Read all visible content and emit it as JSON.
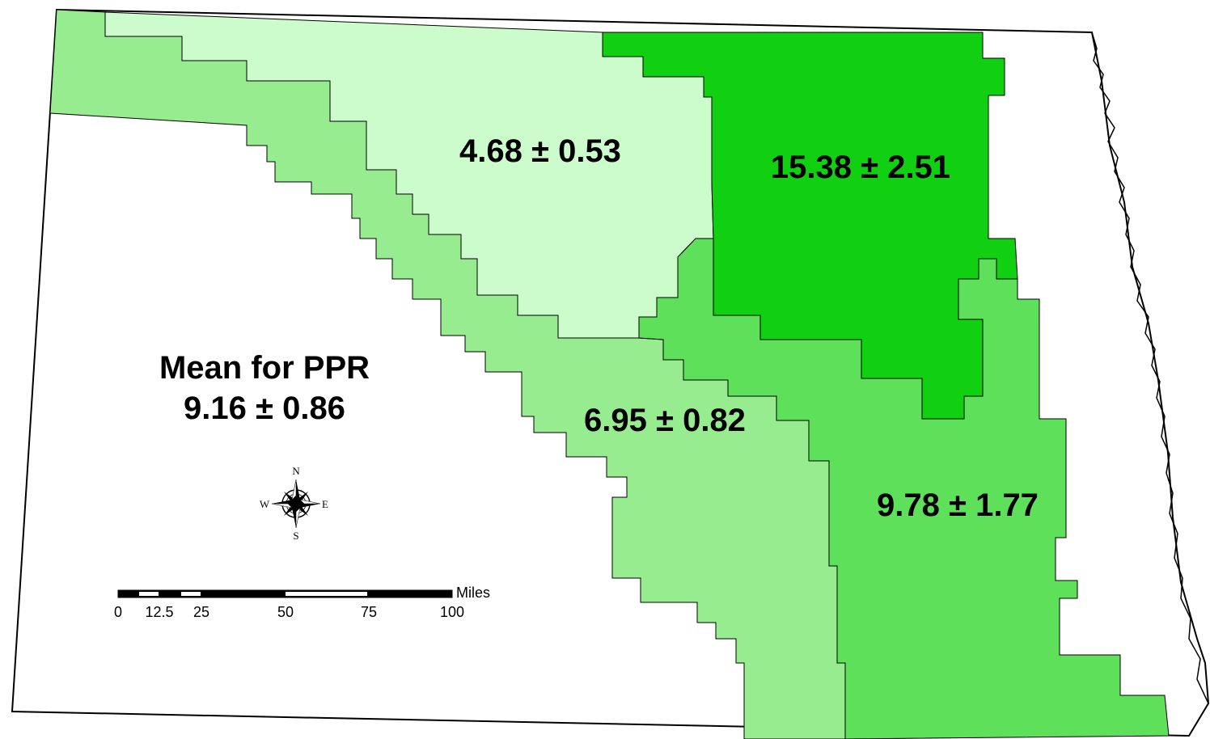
{
  "map": {
    "colors": {
      "background": "#ffffff",
      "outline": "#000000",
      "region_lightest": "#ccfccc",
      "region_light": "#96ec8e",
      "region_medium": "#5ee05a",
      "region_dark": "#11d011"
    },
    "regions": [
      {
        "id": "northwest-north-central",
        "label": "4.68 ± 0.53",
        "value": 4.68,
        "error": 0.53,
        "color": "#ccfccc"
      },
      {
        "id": "northeast",
        "label": "15.38 ± 2.51",
        "value": 15.38,
        "error": 2.51,
        "color": "#11d011"
      },
      {
        "id": "central",
        "label": "6.95 ± 0.82",
        "value": 6.95,
        "error": 0.82,
        "color": "#96ec8e"
      },
      {
        "id": "southeast",
        "label": "9.78 ± 1.77",
        "value": 9.78,
        "error": 1.77,
        "color": "#5ee05a"
      }
    ],
    "summary": {
      "title": "Mean for PPR",
      "value_label": "9.16 ± 0.86",
      "value": 9.16,
      "error": 0.86
    },
    "compass": {
      "n": "N",
      "s": "S",
      "e": "E",
      "w": "W"
    },
    "scale_bar": {
      "unit": "Miles",
      "ticks": [
        "0",
        "12.5",
        "25",
        "50",
        "75",
        "100"
      ]
    }
  }
}
